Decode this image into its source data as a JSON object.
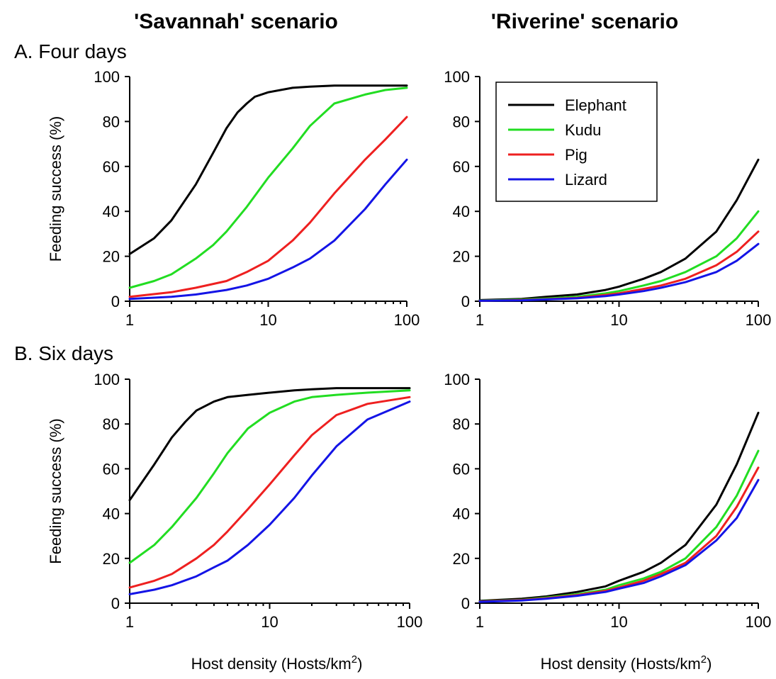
{
  "titles": {
    "left_column": "'Savannah' scenario",
    "right_column": "'Riverine' scenario",
    "row_a": "A. Four days",
    "row_b": "B. Six days"
  },
  "colors": {
    "Elephant": "#000000",
    "Kudu": "#22dd22",
    "Pig": "#ee2020",
    "Lizard": "#1414e6"
  },
  "chart_data": [
    {
      "panel": "A-left",
      "type": "line",
      "xscale": "log",
      "xlim": [
        1,
        100
      ],
      "ylim": [
        0,
        100
      ],
      "xticks": [
        "1",
        "10",
        "100"
      ],
      "yticks": [
        "0",
        "20",
        "40",
        "60",
        "80",
        "100"
      ],
      "ylabel": "Feeding success (%)",
      "xlabel": "",
      "legend": null,
      "series": [
        {
          "name": "Elephant",
          "x": [
            1,
            1.5,
            2,
            3,
            4,
            5,
            6,
            7,
            8,
            10,
            15,
            20,
            30,
            50,
            100
          ],
          "y": [
            21,
            28,
            36,
            52,
            66,
            77,
            84,
            88,
            91,
            93,
            95,
            95.5,
            96,
            96,
            96
          ]
        },
        {
          "name": "Kudu",
          "x": [
            1,
            1.5,
            2,
            3,
            4,
            5,
            7,
            10,
            15,
            20,
            30,
            50,
            70,
            100
          ],
          "y": [
            6,
            9,
            12,
            19,
            25,
            31,
            42,
            55,
            68,
            78,
            88,
            92,
            94,
            95
          ]
        },
        {
          "name": "Pig",
          "x": [
            1,
            2,
            3,
            5,
            7,
            10,
            15,
            20,
            30,
            50,
            70,
            100
          ],
          "y": [
            2,
            4,
            6,
            9,
            13,
            18,
            27,
            35,
            48,
            63,
            72,
            82
          ]
        },
        {
          "name": "Lizard",
          "x": [
            1,
            2,
            3,
            5,
            7,
            10,
            15,
            20,
            30,
            50,
            70,
            100
          ],
          "y": [
            1,
            2,
            3,
            5,
            7,
            10,
            15,
            19,
            27,
            41,
            52,
            63
          ]
        }
      ]
    },
    {
      "panel": "A-right",
      "type": "line",
      "xscale": "log",
      "xlim": [
        1,
        100
      ],
      "ylim": [
        0,
        100
      ],
      "xticks": [
        "1",
        "10",
        "100"
      ],
      "yticks": [
        "0",
        "20",
        "40",
        "60",
        "80",
        "100"
      ],
      "ylabel": "",
      "xlabel": "",
      "legend": "top-left",
      "series": [
        {
          "name": "Elephant",
          "x": [
            1,
            2,
            3,
            5,
            8,
            10,
            15,
            20,
            30,
            50,
            70,
            100
          ],
          "y": [
            0.5,
            1,
            2,
            3,
            5,
            6.5,
            10,
            13,
            19,
            31,
            45,
            63
          ]
        },
        {
          "name": "Kudu",
          "x": [
            1,
            2,
            3,
            5,
            8,
            10,
            15,
            20,
            30,
            50,
            70,
            100
          ],
          "y": [
            0.3,
            0.7,
            1.2,
            2,
            3.5,
            4.5,
            7,
            9,
            13,
            20,
            28,
            40
          ]
        },
        {
          "name": "Pig",
          "x": [
            1,
            2,
            3,
            5,
            8,
            10,
            15,
            20,
            30,
            50,
            70,
            100
          ],
          "y": [
            0.2,
            0.5,
            0.9,
            1.5,
            2.8,
            3.5,
            5.5,
            7,
            10,
            16,
            22,
            31
          ]
        },
        {
          "name": "Lizard",
          "x": [
            1,
            2,
            3,
            5,
            8,
            10,
            15,
            20,
            30,
            50,
            70,
            100
          ],
          "y": [
            0.2,
            0.4,
            0.8,
            1.3,
            2.3,
            3,
            4.5,
            6,
            8.5,
            13,
            18,
            25.5
          ]
        }
      ]
    },
    {
      "panel": "B-left",
      "type": "line",
      "xscale": "log",
      "xlim": [
        1,
        100
      ],
      "ylim": [
        0,
        100
      ],
      "xticks": [
        "1",
        "10",
        "100"
      ],
      "yticks": [
        "0",
        "20",
        "40",
        "60",
        "80",
        "100"
      ],
      "ylabel": "Feeding success (%)",
      "xlabel": "Host density (Hosts/km²)",
      "legend": null,
      "series": [
        {
          "name": "Elephant",
          "x": [
            1,
            1.5,
            2,
            2.5,
            3,
            4,
            5,
            7,
            10,
            15,
            20,
            30,
            50,
            100
          ],
          "y": [
            46,
            62,
            74,
            81,
            86,
            90,
            92,
            93,
            94,
            95,
            95.5,
            96,
            96,
            96
          ]
        },
        {
          "name": "Kudu",
          "x": [
            1,
            1.5,
            2,
            3,
            4,
            5,
            7,
            10,
            15,
            20,
            30,
            50,
            100
          ],
          "y": [
            18,
            26,
            34,
            47,
            58,
            67,
            78,
            85,
            90,
            92,
            93,
            94,
            95
          ]
        },
        {
          "name": "Pig",
          "x": [
            1,
            1.5,
            2,
            3,
            4,
            5,
            7,
            10,
            15,
            20,
            30,
            50,
            100
          ],
          "y": [
            7,
            10,
            13,
            20,
            26,
            32,
            42,
            53,
            66,
            75,
            84,
            89,
            92
          ]
        },
        {
          "name": "Lizard",
          "x": [
            1,
            1.5,
            2,
            3,
            4,
            5,
            7,
            10,
            15,
            20,
            30,
            50,
            100
          ],
          "y": [
            4,
            6,
            8,
            12,
            16,
            19,
            26,
            35,
            47,
            57,
            70,
            82,
            90
          ]
        }
      ]
    },
    {
      "panel": "B-right",
      "type": "line",
      "xscale": "log",
      "xlim": [
        1,
        100
      ],
      "ylim": [
        0,
        100
      ],
      "xticks": [
        "1",
        "10",
        "100"
      ],
      "yticks": [
        "0",
        "20",
        "40",
        "60",
        "80",
        "100"
      ],
      "ylabel": "",
      "xlabel": "Host density (Hosts/km²)",
      "legend": null,
      "series": [
        {
          "name": "Elephant",
          "x": [
            1,
            2,
            3,
            5,
            8,
            10,
            15,
            20,
            30,
            50,
            70,
            100
          ],
          "y": [
            1,
            2,
            3,
            5,
            7.5,
            10,
            14,
            18,
            26,
            44,
            62,
            85
          ]
        },
        {
          "name": "Kudu",
          "x": [
            1,
            2,
            3,
            5,
            8,
            10,
            15,
            20,
            30,
            50,
            70,
            100
          ],
          "y": [
            0.8,
            1.5,
            2.5,
            4,
            6,
            8,
            11,
            14,
            20,
            34,
            48,
            68
          ]
        },
        {
          "name": "Pig",
          "x": [
            1,
            2,
            3,
            5,
            8,
            10,
            15,
            20,
            30,
            50,
            70,
            100
          ],
          "y": [
            0.7,
            1.4,
            2.2,
            3.6,
            5.5,
            7,
            10,
            13,
            18,
            30,
            43,
            60.5
          ]
        },
        {
          "name": "Lizard",
          "x": [
            1,
            2,
            3,
            5,
            8,
            10,
            15,
            20,
            30,
            50,
            70,
            100
          ],
          "y": [
            0.6,
            1.2,
            2,
            3.3,
            5,
            6.5,
            9,
            12,
            17,
            28,
            38,
            55
          ]
        }
      ]
    }
  ]
}
